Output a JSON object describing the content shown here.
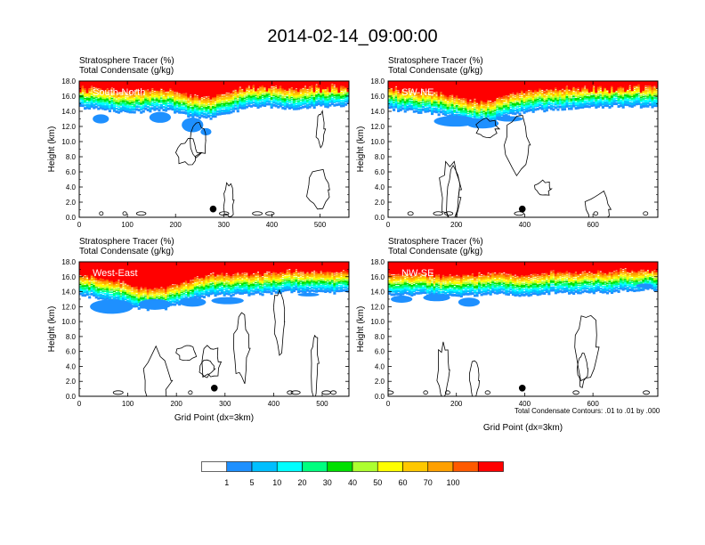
{
  "title": "2014-02-14_09:00:00",
  "colors": [
    "#ffffff",
    "#1e90ff",
    "#00bfff",
    "#00ffff",
    "#00ff7f",
    "#00e000",
    "#adff2f",
    "#ffff00",
    "#ffc800",
    "#ffa000",
    "#ff5a00",
    "#ff0000"
  ],
  "chart_data": [
    {
      "type": "heatmap",
      "panel": "South-North",
      "label1": "Stratosphere Tracer   (%)",
      "label2": "Total Condensate   (g/kg)",
      "xlabel": "",
      "ylabel": "Height (km)",
      "xlim": [
        0,
        560
      ],
      "ylim": [
        0,
        18
      ],
      "xticks": [
        0,
        100,
        200,
        300,
        400,
        500
      ],
      "yticks": [
        "0.0",
        "2.0",
        "4.0",
        "6.0",
        "8.0",
        "10.0",
        "12.0",
        "14.0",
        "16.0",
        "18.0"
      ],
      "marker_x": 278,
      "marker_y": 1.1
    },
    {
      "type": "heatmap",
      "panel": "SW-NE",
      "label1": "Stratosphere Tracer   (%)",
      "label2": "Total Condensate   (g/kg)",
      "xlabel": "",
      "ylabel": "Height (km)",
      "xlim": [
        0,
        790
      ],
      "ylim": [
        0,
        18
      ],
      "xticks": [
        0,
        200,
        400,
        600
      ],
      "yticks": [
        "0.0",
        "2.0",
        "4.0",
        "6.0",
        "8.0",
        "10.0",
        "12.0",
        "14.0",
        "16.0",
        "18.0"
      ],
      "marker_x": 393,
      "marker_y": 1.1
    },
    {
      "type": "heatmap",
      "panel": "West-East",
      "label1": "Stratosphere Tracer   (%)",
      "label2": "Total Condensate   (g/kg)",
      "xlabel": "Grid Point (dx=3km)",
      "ylabel": "Height (km)",
      "xlim": [
        0,
        555
      ],
      "ylim": [
        0,
        18
      ],
      "xticks": [
        0,
        100,
        200,
        300,
        400,
        500
      ],
      "yticks": [
        "0.0",
        "2.0",
        "4.0",
        "6.0",
        "8.0",
        "10.0",
        "12.0",
        "14.0",
        "16.0",
        "18.0"
      ],
      "marker_x": 278,
      "marker_y": 1.1
    },
    {
      "type": "heatmap",
      "panel": "NW-SE",
      "label1": "Stratosphere Tracer   (%)",
      "label2": "Total Condensate   (g/kg)",
      "xlabel": "Grid Point (dx=3km)",
      "ylabel": "Height (km)",
      "xlim": [
        0,
        790
      ],
      "ylim": [
        0,
        18
      ],
      "xticks": [
        0,
        200,
        400,
        600
      ],
      "yticks": [
        "0.0",
        "2.0",
        "4.0",
        "6.0",
        "8.0",
        "10.0",
        "12.0",
        "14.0",
        "16.0",
        "18.0"
      ],
      "marker_x": 393,
      "marker_y": 1.1
    }
  ],
  "colorbar": {
    "labels": [
      "1",
      "5",
      "10",
      "20",
      "30",
      "40",
      "50",
      "60",
      "70",
      "100"
    ]
  },
  "contour_note": "Total Condensate Contours: .01 to .01 by .000"
}
